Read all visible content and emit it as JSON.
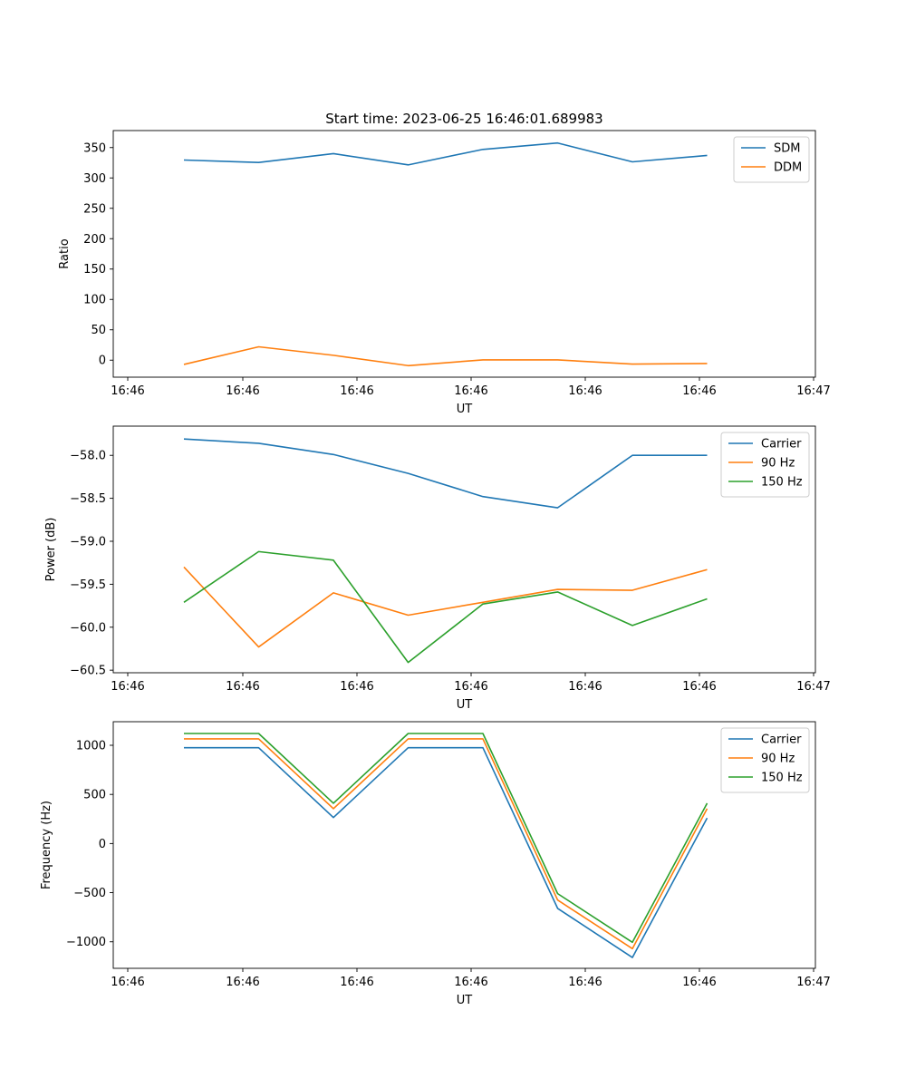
{
  "figure_title": "Start time: 2023-06-25 16:46:01.689983",
  "chart_data": [
    {
      "type": "line",
      "xlabel": "UT",
      "ylabel": "Ratio",
      "x_tick_labels": [
        "16:46",
        "16:46",
        "16:46",
        "16:46",
        "16:46",
        "16:46",
        "16:47"
      ],
      "y_ticks": [
        0,
        50,
        100,
        150,
        200,
        250,
        300,
        350
      ],
      "ylim": [
        -28,
        378
      ],
      "grid": false,
      "legend_position": "top-right",
      "series": [
        {
          "name": "SDM",
          "color": "#1f77b4",
          "values": [
            329.5,
            325.5,
            340,
            321.5,
            347,
            357.5,
            326.5,
            337
          ]
        },
        {
          "name": "DDM",
          "color": "#ff7f0e",
          "values": [
            -7,
            22,
            8,
            -9,
            0.5,
            0.5,
            -6.5,
            -5.5
          ]
        }
      ]
    },
    {
      "type": "line",
      "xlabel": "UT",
      "ylabel": "Power (dB)",
      "x_tick_labels": [
        "16:46",
        "16:46",
        "16:46",
        "16:46",
        "16:46",
        "16:46",
        "16:47"
      ],
      "y_ticks": [
        -58.0,
        -58.5,
        -59.0,
        -59.5,
        -60.0,
        -60.5
      ],
      "y_tick_labels": [
        "−58.0",
        "−58.5",
        "−59.0",
        "−59.5",
        "−60.0",
        "−60.5"
      ],
      "ylim": [
        -60.53,
        -57.66
      ],
      "grid": false,
      "legend_position": "top-right",
      "series": [
        {
          "name": "Carrier",
          "color": "#1f77b4",
          "values": [
            -57.81,
            -57.86,
            -57.99,
            -58.21,
            -58.48,
            -58.61,
            -58.0,
            -58.0
          ]
        },
        {
          "name": "90 Hz",
          "color": "#ff7f0e",
          "values": [
            -59.3,
            -60.23,
            -59.6,
            -59.86,
            -59.71,
            -59.56,
            -59.57,
            -59.33
          ]
        },
        {
          "name": "150 Hz",
          "color": "#2ca02c",
          "values": [
            -59.71,
            -59.12,
            -59.22,
            -60.41,
            -59.73,
            -59.59,
            -59.98,
            -59.67
          ]
        }
      ]
    },
    {
      "type": "line",
      "xlabel": "UT",
      "ylabel": "Frequency (Hz)",
      "x_tick_labels": [
        "16:46",
        "16:46",
        "16:46",
        "16:46",
        "16:46",
        "16:46",
        "16:47"
      ],
      "y_ticks": [
        1000,
        500,
        0,
        -500,
        -1000
      ],
      "y_tick_labels": [
        "1000",
        "500",
        "0",
        "−500",
        "−1000"
      ],
      "ylim": [
        -1270,
        1240
      ],
      "grid": false,
      "legend_position": "top-right",
      "series": [
        {
          "name": "Carrier",
          "color": "#1f77b4",
          "values": [
            975,
            975,
            265,
            975,
            975,
            -660,
            -1160,
            260
          ]
        },
        {
          "name": "90 Hz",
          "color": "#ff7f0e",
          "values": [
            1065,
            1065,
            355,
            1065,
            1065,
            -575,
            -1070,
            355
          ]
        },
        {
          "name": "150 Hz",
          "color": "#2ca02c",
          "values": [
            1120,
            1120,
            410,
            1120,
            1120,
            -510,
            -1005,
            410
          ]
        }
      ]
    }
  ]
}
